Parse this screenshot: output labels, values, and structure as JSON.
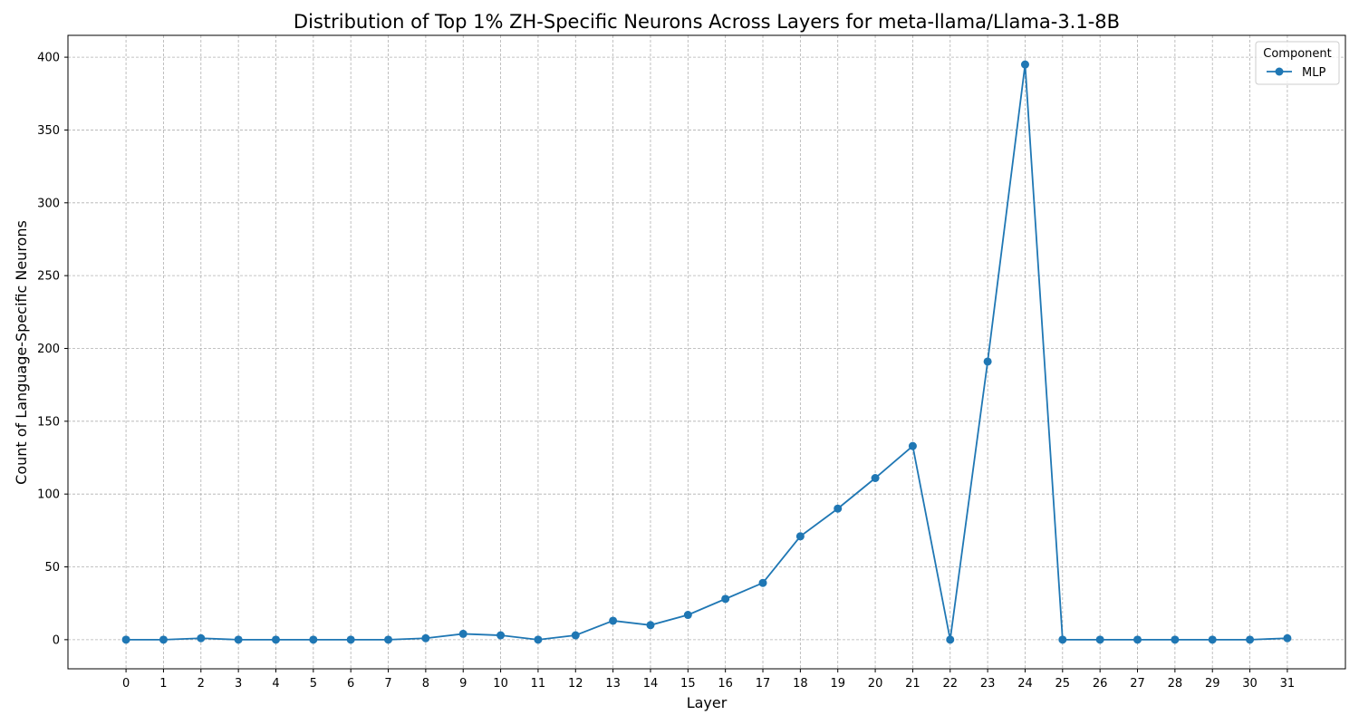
{
  "chart_data": {
    "type": "line",
    "title": "Distribution of Top 1% ZH-Specific Neurons Across Layers for meta-llama/Llama-3.1-8B",
    "xlabel": "Layer",
    "ylabel": "Count of Language-Specific Neurons",
    "x": [
      0,
      1,
      2,
      3,
      4,
      5,
      6,
      7,
      8,
      9,
      10,
      11,
      12,
      13,
      14,
      15,
      16,
      17,
      18,
      19,
      20,
      21,
      22,
      23,
      24,
      25,
      26,
      27,
      28,
      29,
      30,
      31
    ],
    "xticks": [
      "0",
      "1",
      "2",
      "3",
      "4",
      "5",
      "6",
      "7",
      "8",
      "9",
      "10",
      "11",
      "12",
      "13",
      "14",
      "15",
      "16",
      "17",
      "18",
      "19",
      "20",
      "21",
      "22",
      "23",
      "24",
      "25",
      "26",
      "27",
      "28",
      "29",
      "30",
      "31"
    ],
    "xlim": [
      -1.55,
      32.55
    ],
    "ylim": [
      -20,
      415
    ],
    "yticks": [
      "0",
      "50",
      "100",
      "150",
      "200",
      "250",
      "300",
      "350",
      "400"
    ],
    "grid": true,
    "legend": {
      "title": "Component",
      "placement": "top-right"
    },
    "series": [
      {
        "name": "MLP",
        "color": "#1f77b4",
        "marker": "circle",
        "values": [
          0,
          0,
          1,
          0,
          0,
          0,
          0,
          0,
          1,
          4,
          3,
          0,
          3,
          13,
          10,
          17,
          28,
          39,
          71,
          90,
          111,
          133,
          0,
          191,
          395,
          0,
          0,
          0,
          0,
          0,
          0,
          1
        ]
      }
    ]
  }
}
